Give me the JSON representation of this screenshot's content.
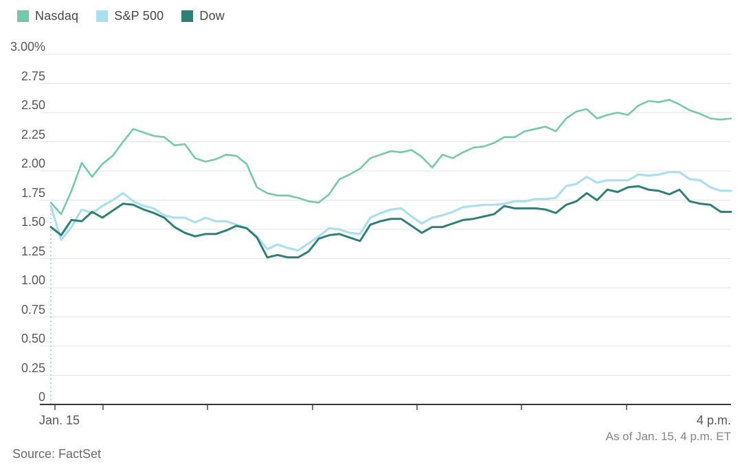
{
  "legend": {
    "items": [
      {
        "label": "Nasdaq",
        "color": "#74c9a6"
      },
      {
        "label": "S&P 500",
        "color": "#abdff0"
      },
      {
        "label": "Dow",
        "color": "#2e8076"
      }
    ]
  },
  "chart_data": {
    "type": "line",
    "x_axis": {
      "start_label": "Jan. 15",
      "end_label": "4 p.m.",
      "note": "points evenly spaced from market open (Jan. 15) to 4 p.m."
    },
    "y_axis": {
      "tick_labels": [
        "3.00%",
        "2.75",
        "2.50",
        "2.25",
        "2.00",
        "1.75",
        "1.50",
        "1.25",
        "1.00",
        "0.75",
        "0.50",
        "0.25",
        "0"
      ],
      "min": 0,
      "max": 3.0,
      "step": 0.25,
      "unit": "percent"
    },
    "grid": "horizontal",
    "legend_position": "top-left",
    "open_gap_dash": {
      "from_value": 0,
      "style": "dotted",
      "color": "#a3dcec"
    },
    "series": [
      {
        "name": "Nasdaq",
        "color": "#74c9a6",
        "values": [
          1.73,
          1.63,
          1.83,
          2.07,
          1.95,
          2.06,
          2.13,
          2.25,
          2.36,
          2.33,
          2.3,
          2.29,
          2.22,
          2.23,
          2.11,
          2.08,
          2.1,
          2.14,
          2.13,
          2.06,
          1.86,
          1.81,
          1.79,
          1.79,
          1.77,
          1.74,
          1.73,
          1.8,
          1.93,
          1.97,
          2.02,
          2.11,
          2.14,
          2.17,
          2.16,
          2.18,
          2.12,
          2.03,
          2.14,
          2.11,
          2.16,
          2.2,
          2.21,
          2.24,
          2.29,
          2.29,
          2.34,
          2.36,
          2.38,
          2.34,
          2.45,
          2.51,
          2.53,
          2.45,
          2.48,
          2.5,
          2.48,
          2.56,
          2.6,
          2.59,
          2.61,
          2.57,
          2.52,
          2.49,
          2.45,
          2.44,
          2.45
        ]
      },
      {
        "name": "S&P 500",
        "color": "#abdff0",
        "values": [
          1.7,
          1.41,
          1.52,
          1.67,
          1.64,
          1.7,
          1.75,
          1.81,
          1.74,
          1.7,
          1.68,
          1.62,
          1.6,
          1.6,
          1.56,
          1.6,
          1.57,
          1.57,
          1.54,
          1.51,
          1.44,
          1.33,
          1.37,
          1.34,
          1.32,
          1.38,
          1.44,
          1.51,
          1.5,
          1.47,
          1.46,
          1.6,
          1.64,
          1.67,
          1.68,
          1.61,
          1.55,
          1.6,
          1.62,
          1.65,
          1.69,
          1.7,
          1.71,
          1.71,
          1.72,
          1.74,
          1.74,
          1.76,
          1.76,
          1.77,
          1.87,
          1.89,
          1.95,
          1.9,
          1.92,
          1.92,
          1.92,
          1.97,
          1.96,
          1.97,
          1.99,
          1.99,
          1.93,
          1.92,
          1.86,
          1.83,
          1.83
        ]
      },
      {
        "name": "Dow",
        "color": "#2e8076",
        "values": [
          1.52,
          1.45,
          1.58,
          1.57,
          1.65,
          1.6,
          1.66,
          1.72,
          1.71,
          1.67,
          1.64,
          1.6,
          1.52,
          1.47,
          1.44,
          1.46,
          1.46,
          1.49,
          1.53,
          1.51,
          1.43,
          1.26,
          1.28,
          1.26,
          1.26,
          1.31,
          1.42,
          1.45,
          1.46,
          1.43,
          1.4,
          1.54,
          1.57,
          1.59,
          1.59,
          1.53,
          1.47,
          1.52,
          1.52,
          1.55,
          1.58,
          1.59,
          1.61,
          1.63,
          1.7,
          1.68,
          1.68,
          1.68,
          1.67,
          1.64,
          1.71,
          1.74,
          1.81,
          1.75,
          1.84,
          1.82,
          1.86,
          1.87,
          1.84,
          1.83,
          1.8,
          1.84,
          1.74,
          1.72,
          1.71,
          1.65,
          1.65
        ]
      }
    ]
  },
  "footer": {
    "as_of": "As of Jan. 15, 4 p.m. ET",
    "source": "Source: FactSet"
  },
  "colors": {
    "axis": "#333536",
    "tick": "#47484a",
    "gridline": "#e4e4e4"
  }
}
